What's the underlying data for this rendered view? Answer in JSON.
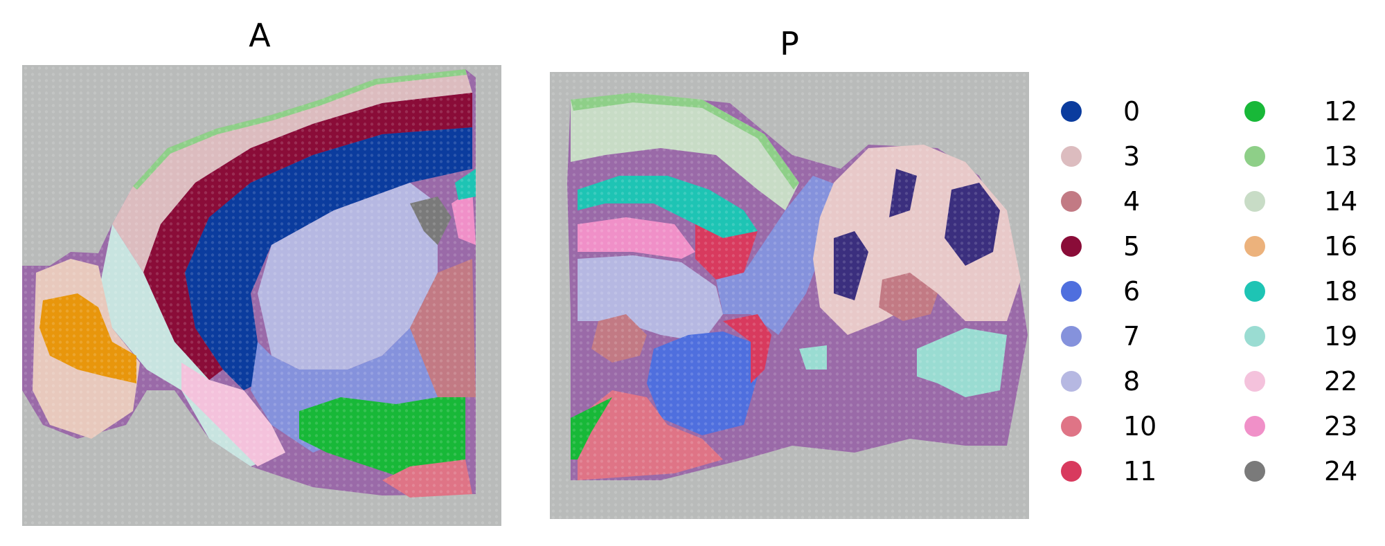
{
  "panels": [
    {
      "title": "A"
    },
    {
      "title": "P"
    }
  ],
  "legend": [
    {
      "label": "0",
      "color": "#0b3c9e"
    },
    {
      "label": "3",
      "color": "#dcbcbf"
    },
    {
      "label": "4",
      "color": "#c27a84"
    },
    {
      "label": "5",
      "color": "#8a0c38"
    },
    {
      "label": "6",
      "color": "#4f6fde"
    },
    {
      "label": "7",
      "color": "#8592dc"
    },
    {
      "label": "8",
      "color": "#b6b8e2"
    },
    {
      "label": "10",
      "color": "#df7486"
    },
    {
      "label": "11",
      "color": "#d83a5e"
    },
    {
      "label": "12",
      "color": "#18b838"
    },
    {
      "label": "13",
      "color": "#8ecf88"
    },
    {
      "label": "14",
      "color": "#c8dcc6"
    },
    {
      "label": "16",
      "color": "#ecb27c"
    },
    {
      "label": "18",
      "color": "#1ec4b4"
    },
    {
      "label": "19",
      "color": "#9adcd2"
    },
    {
      "label": "22",
      "color": "#f4c2dc"
    },
    {
      "label": "23",
      "color": "#f090c8"
    },
    {
      "label": "24",
      "color": "#7a7a7a"
    }
  ],
  "colors": {
    "tissue": "#9a6aa8",
    "background": "#b9bbba",
    "extra_orange": "#e8960c",
    "dark_purple": "#3b2f7e"
  }
}
